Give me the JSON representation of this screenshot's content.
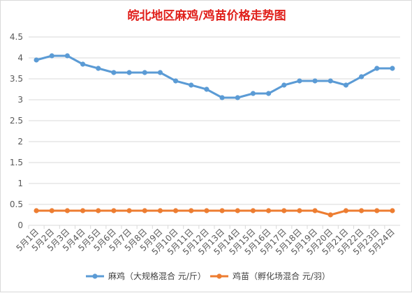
{
  "chart_data": {
    "type": "line",
    "title": "皖北地区麻鸡/鸡苗价格走势图",
    "categories": [
      "5月1日",
      "5月2日",
      "5月3日",
      "5月4日",
      "5月5日",
      "5月6日",
      "5月7日",
      "5月8日",
      "5月9日",
      "5月10日",
      "5月11日",
      "5月12日",
      "5月13日",
      "5月14日",
      "5月15日",
      "5月16日",
      "5月17日",
      "5月18日",
      "5月19日",
      "5月20日",
      "5月21日",
      "5月22日",
      "5月23日",
      "5月24日"
    ],
    "series": [
      {
        "name": "麻鸡（大规格混合 元/斤）",
        "color": "#5b9bd5",
        "values": [
          3.95,
          4.05,
          4.05,
          3.85,
          3.75,
          3.65,
          3.65,
          3.65,
          3.65,
          3.45,
          3.35,
          3.25,
          3.05,
          3.05,
          3.15,
          3.15,
          3.35,
          3.45,
          3.45,
          3.45,
          3.35,
          3.55,
          3.75,
          3.75
        ]
      },
      {
        "name": "鸡苗（孵化场混合 元/羽）",
        "color": "#ed7d31",
        "values": [
          0.35,
          0.35,
          0.35,
          0.35,
          0.35,
          0.35,
          0.35,
          0.35,
          0.35,
          0.35,
          0.35,
          0.35,
          0.35,
          0.35,
          0.35,
          0.35,
          0.35,
          0.35,
          0.35,
          0.25,
          0.35,
          0.35,
          0.35,
          0.35
        ]
      }
    ],
    "ylim": [
      0,
      4.5
    ],
    "yticks": [
      "0",
      "0.5",
      "1",
      "1.5",
      "2",
      "2.5",
      "3",
      "3.5",
      "4",
      "4.5"
    ],
    "grid": true,
    "legend": "bottom"
  }
}
